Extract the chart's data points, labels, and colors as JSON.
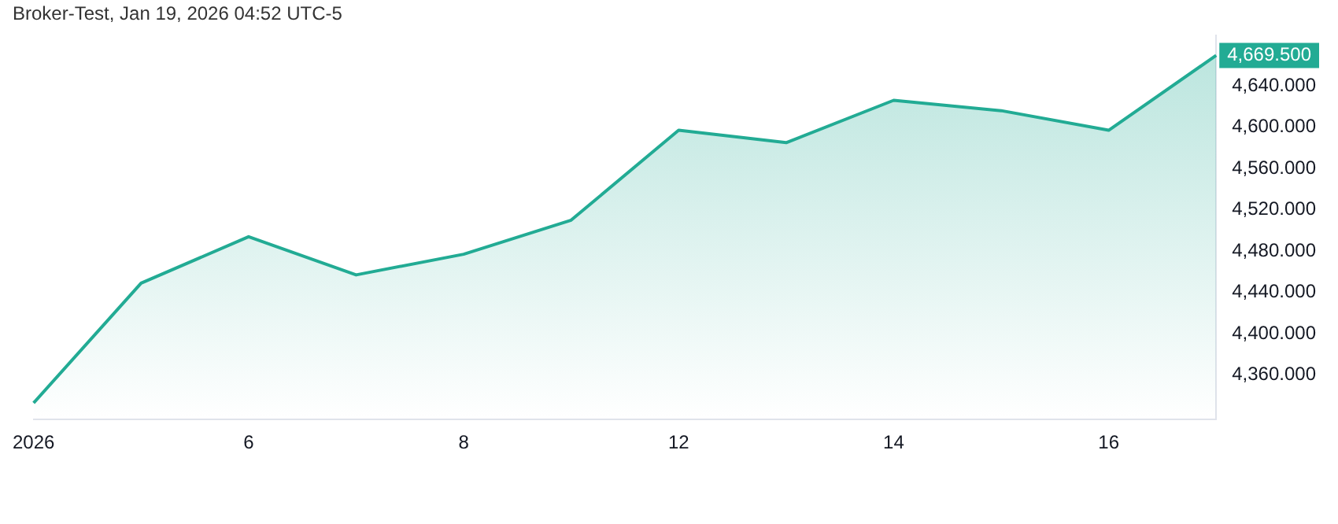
{
  "chart_data": {
    "type": "area",
    "title": "Broker-Test, Jan 19, 2026 04:52 UTC-5",
    "categories": [
      "2026",
      null,
      "6",
      null,
      "8",
      null,
      "12",
      null,
      "14",
      null,
      "16",
      null
    ],
    "series": [
      {
        "color": "#22ab94",
        "values": [
          4333,
          4449,
          4494,
          4457,
          4477,
          4510,
          4597,
          4585,
          4626,
          4616,
          4597,
          4669.5
        ]
      }
    ],
    "ylim": [
      4317,
      4689
    ],
    "yticks": [
      {
        "value": 4360,
        "label": "4,360.000"
      },
      {
        "value": 4400,
        "label": "4,400.000"
      },
      {
        "value": 4440,
        "label": "4,440.000"
      },
      {
        "value": 4480,
        "label": "4,480.000"
      },
      {
        "value": 4520,
        "label": "4,520.000"
      },
      {
        "value": 4560,
        "label": "4,560.000"
      },
      {
        "value": 4600,
        "label": "4,600.000"
      },
      {
        "value": 4640,
        "label": "4,640.000"
      }
    ],
    "annotations": [
      "4,669.500"
    ],
    "grid": false,
    "legend": false,
    "marker": "none",
    "line_style": "solid"
  }
}
